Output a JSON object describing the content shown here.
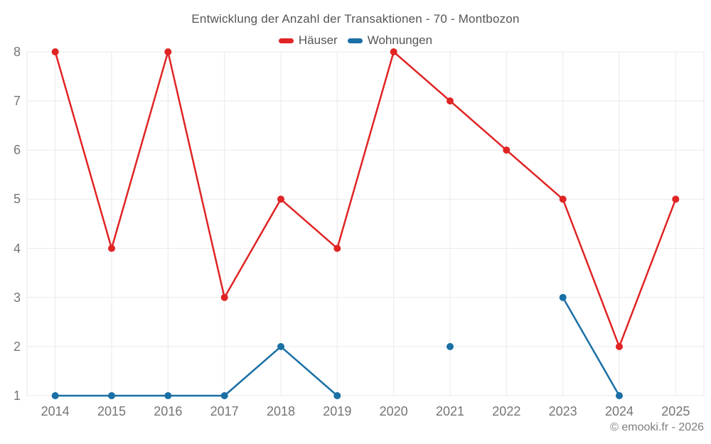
{
  "chart_data": {
    "type": "line",
    "title": "Entwicklung der Anzahl der Transaktionen - 70 - Montbozon",
    "x": [
      "2014",
      "2015",
      "2016",
      "2017",
      "2018",
      "2019",
      "2020",
      "2021",
      "2022",
      "2023",
      "2024",
      "2025"
    ],
    "series": [
      {
        "name": "Häuser",
        "color": "#e02424",
        "values": [
          8,
          4,
          8,
          3,
          5,
          4,
          8,
          7,
          6,
          5,
          2,
          5
        ]
      },
      {
        "name": "Wohnungen",
        "color": "#1a6fa5",
        "values": [
          1,
          1,
          1,
          1,
          2,
          1,
          null,
          2,
          null,
          3,
          1,
          null
        ]
      }
    ],
    "ylim": [
      1,
      8
    ],
    "yticks": [
      1,
      2,
      3,
      4,
      5,
      6,
      7,
      8
    ],
    "grid": true,
    "legend_position": "top",
    "xlabel": "",
    "ylabel": ""
  },
  "footer": {
    "copyright": "© emooki.fr - 2026"
  },
  "colors": {
    "grid": "#e9e9e9",
    "tick_label": "#757575",
    "title_text": "#555555",
    "footer_text": "#7d7d7d",
    "background": "#ffffff"
  }
}
